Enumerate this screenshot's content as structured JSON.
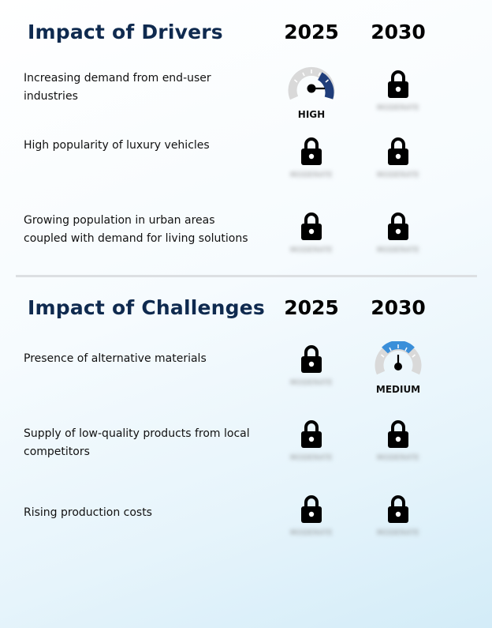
{
  "drivers": {
    "title": "Impact of Drivers",
    "years": [
      "2025",
      "2030"
    ],
    "rows": [
      {
        "label": "Increasing demand from end-user industries",
        "y2025": {
          "type": "gauge",
          "label": "HIGH",
          "level": "high"
        },
        "y2030": {
          "type": "lock",
          "hidden": "MODERATE"
        }
      },
      {
        "label": "High popularity of luxury vehicles",
        "y2025": {
          "type": "lock",
          "hidden": "MODERATE"
        },
        "y2030": {
          "type": "lock",
          "hidden": "MODERATE"
        }
      },
      {
        "label": "Growing population in urban areas coupled with demand for living solutions",
        "y2025": {
          "type": "lock",
          "hidden": "MODERATE"
        },
        "y2030": {
          "type": "lock",
          "hidden": "MODERATE"
        }
      }
    ]
  },
  "challenges": {
    "title": "Impact of Challenges",
    "years": [
      "2025",
      "2030"
    ],
    "rows": [
      {
        "label": "Presence of alternative materials",
        "y2025": {
          "type": "lock",
          "hidden": "MODERATE"
        },
        "y2030": {
          "type": "gauge",
          "label": "MEDIUM",
          "level": "medium"
        }
      },
      {
        "label": "Supply of low-quality products from local competitors",
        "y2025": {
          "type": "lock",
          "hidden": "MODERATE"
        },
        "y2030": {
          "type": "lock",
          "hidden": "MODERATE"
        }
      },
      {
        "label": "Rising production costs",
        "y2025": {
          "type": "lock",
          "hidden": "MODERATE"
        },
        "y2030": {
          "type": "lock",
          "hidden": "MODERATE"
        }
      }
    ]
  },
  "colors": {
    "title": "#0f2a4f",
    "gauge_high": "#1f3d7a",
    "gauge_medium": "#3a8fd9",
    "gauge_track": "#d9d9d9"
  }
}
